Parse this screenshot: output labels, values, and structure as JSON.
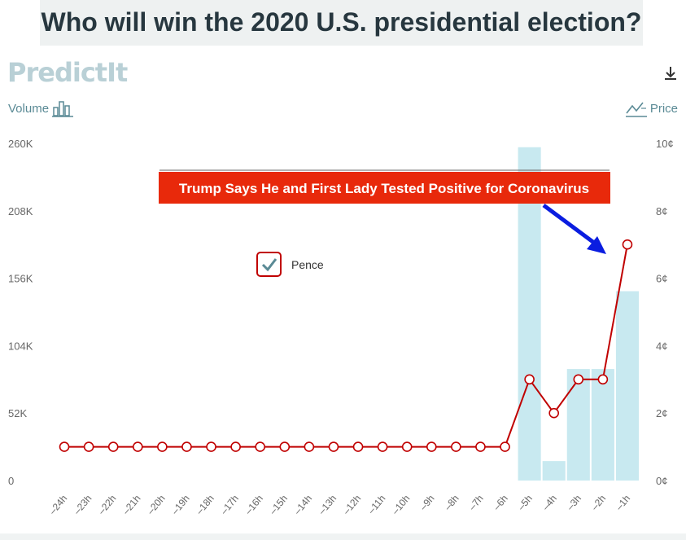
{
  "header": {
    "title": "Who will win the 2020 U.S. presidential election?"
  },
  "brand": {
    "logo_text": "PredictIt"
  },
  "toolbar": {
    "volume_label": "Volume",
    "price_label": "Price",
    "download_icon": "download-icon"
  },
  "colors": {
    "bar": "#c8e9f0",
    "line": "#c00000",
    "annotation_bg": "#e8290b",
    "arrow": "#0a1de0",
    "axis_text": "#666666"
  },
  "chart_data": {
    "type": "bar+line",
    "categories": [
      "-24h",
      "-23h",
      "-22h",
      "-21h",
      "-20h",
      "-19h",
      "-18h",
      "-17h",
      "-16h",
      "-15h",
      "-14h",
      "-13h",
      "-12h",
      "-11h",
      "-10h",
      "-9h",
      "-8h",
      "-7h",
      "-6h",
      "-5h",
      "-4h",
      "-3h",
      "-2h",
      "-1h"
    ],
    "y_left": {
      "label": "Volume",
      "ticks": [
        "0",
        "52K",
        "104K",
        "156K",
        "208K",
        "260K"
      ],
      "tick_values": [
        0,
        52000,
        104000,
        156000,
        208000,
        260000
      ],
      "range": [
        0,
        260000
      ]
    },
    "y_right": {
      "label": "Price",
      "ticks": [
        "0¢",
        "2¢",
        "4¢",
        "6¢",
        "8¢",
        "10¢"
      ],
      "tick_values": [
        0,
        2,
        4,
        6,
        8,
        10
      ],
      "range": [
        0,
        10
      ]
    },
    "series": [
      {
        "name": "Volume",
        "kind": "bar",
        "values": [
          0,
          0,
          0,
          0,
          0,
          0,
          0,
          0,
          0,
          0,
          0,
          0,
          0,
          0,
          0,
          0,
          0,
          0,
          0,
          257000,
          15000,
          86000,
          86000,
          146000
        ]
      },
      {
        "name": "Pence",
        "kind": "line",
        "values": [
          1,
          1,
          1,
          1,
          1,
          1,
          1,
          1,
          1,
          1,
          1,
          1,
          1,
          1,
          1,
          1,
          1,
          1,
          1,
          3,
          2,
          3,
          3,
          7
        ]
      }
    ],
    "legend": {
      "entries": [
        "Pence"
      ],
      "checked": true
    },
    "annotation": {
      "text": "Trump Says He and First Lady Tested Positive for Coronavirus",
      "points_to": "-1h"
    }
  }
}
